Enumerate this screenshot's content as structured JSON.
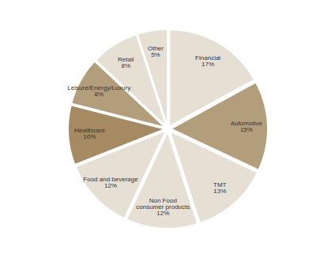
{
  "chart_data": {
    "type": "pie",
    "categories": [
      "Financial",
      "Automotive",
      "TMT",
      "Non Food consumer products",
      "Food and beverage",
      "Healthcare",
      "Leisure/Energy/Luxury",
      "Retail",
      "Other"
    ],
    "values": [
      17,
      15,
      13,
      12,
      12,
      10,
      8,
      8,
      5
    ],
    "value_labels": [
      "17%",
      "15%",
      "13%",
      "12%",
      "12%",
      "10%",
      "8%",
      "8%",
      "5%"
    ],
    "colors": [
      "#e6dfd3",
      "#b39e7c",
      "#e6dfd3",
      "#e6dfd3",
      "#e6dfd3",
      "#a58a62",
      "#b39e7c",
      "#e6dfd3",
      "#e6dfd3"
    ],
    "data_labels": true
  }
}
